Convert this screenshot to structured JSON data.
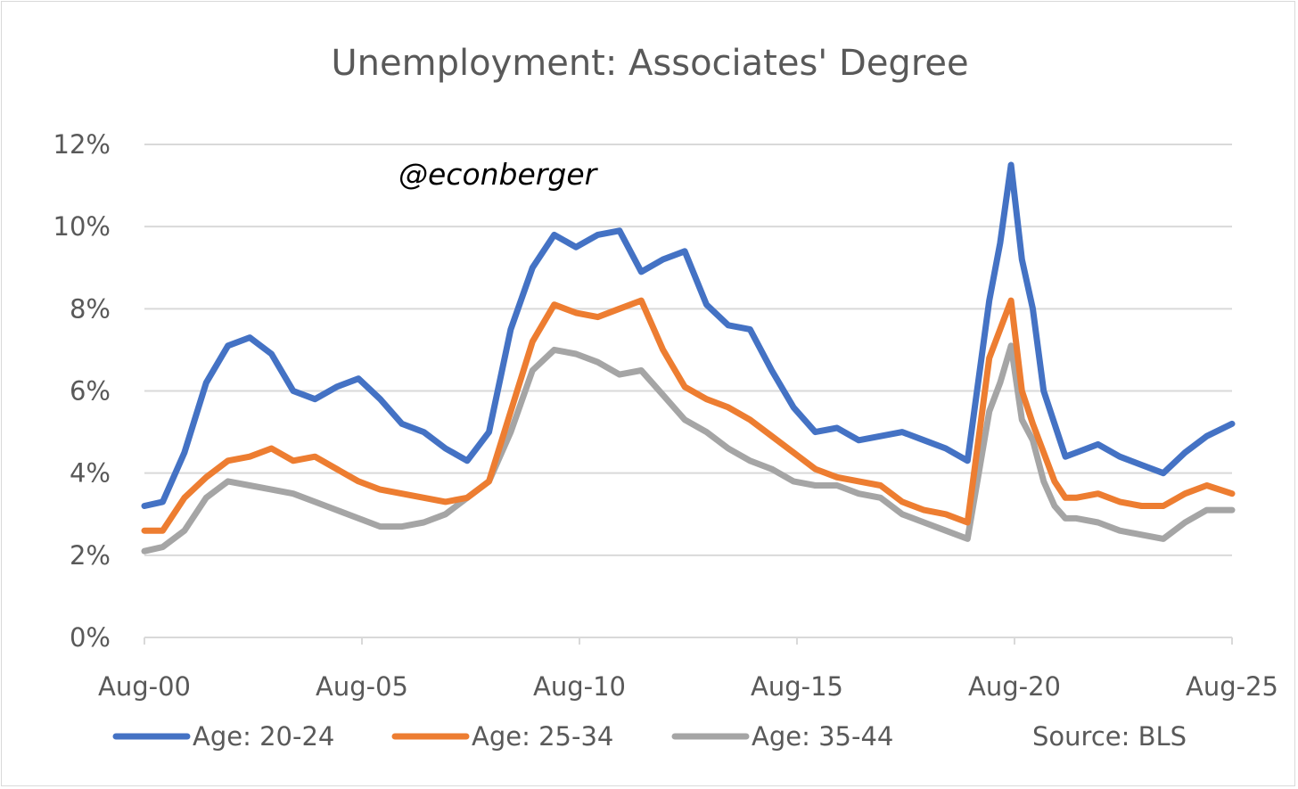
{
  "chart_data": {
    "type": "line",
    "title": "Unemployment: Associates' Degree",
    "watermark": "@econberger",
    "source_label": "Source: BLS",
    "x_tick_labels": [
      "Aug-00",
      "Aug-05",
      "Aug-10",
      "Aug-15",
      "Aug-20",
      "Aug-25"
    ],
    "y_tick_labels": [
      "0%",
      "2%",
      "4%",
      "6%",
      "8%",
      "10%",
      "12%"
    ],
    "ylim": [
      0,
      12
    ],
    "y_unit": "%",
    "grid": true,
    "legend_position": "bottom",
    "x": [
      2000.58,
      2001.0,
      2001.5,
      2002.0,
      2002.5,
      2003.0,
      2003.5,
      2004.0,
      2004.5,
      2005.0,
      2005.5,
      2006.0,
      2006.5,
      2007.0,
      2007.5,
      2008.0,
      2008.5,
      2009.0,
      2009.5,
      2010.0,
      2010.5,
      2011.0,
      2011.5,
      2012.0,
      2012.5,
      2013.0,
      2013.5,
      2014.0,
      2014.5,
      2015.0,
      2015.5,
      2016.0,
      2016.5,
      2017.0,
      2017.5,
      2018.0,
      2018.5,
      2019.0,
      2019.5,
      2020.0,
      2020.25,
      2020.5,
      2020.75,
      2021.0,
      2021.25,
      2021.5,
      2021.75,
      2022.0,
      2022.5,
      2023.0,
      2023.5,
      2024.0,
      2024.5,
      2025.0,
      2025.58
    ],
    "series": [
      {
        "name": "Age: 20-24",
        "color": "#4472c4",
        "values": [
          3.2,
          3.3,
          4.5,
          6.2,
          7.1,
          7.3,
          6.9,
          6.0,
          5.8,
          6.1,
          6.3,
          5.8,
          5.2,
          5.0,
          4.6,
          4.3,
          5.0,
          7.5,
          9.0,
          9.8,
          9.5,
          9.8,
          9.9,
          8.9,
          9.2,
          9.4,
          8.1,
          7.6,
          7.5,
          6.5,
          5.6,
          5.0,
          5.1,
          4.8,
          4.9,
          5.0,
          4.8,
          4.6,
          4.3,
          8.2,
          9.6,
          11.5,
          9.2,
          8.0,
          6.0,
          5.2,
          4.4,
          4.5,
          4.7,
          4.4,
          4.2,
          4.0,
          4.5,
          4.9,
          5.2
        ]
      },
      {
        "name": "Age: 25-34",
        "color": "#ed7d31",
        "values": [
          2.6,
          2.6,
          3.4,
          3.9,
          4.3,
          4.4,
          4.6,
          4.3,
          4.4,
          4.1,
          3.8,
          3.6,
          3.5,
          3.4,
          3.3,
          3.4,
          3.8,
          5.5,
          7.2,
          8.1,
          7.9,
          7.8,
          8.0,
          8.2,
          7.0,
          6.1,
          5.8,
          5.6,
          5.3,
          4.9,
          4.5,
          4.1,
          3.9,
          3.8,
          3.7,
          3.3,
          3.1,
          3.0,
          2.8,
          6.8,
          7.5,
          8.2,
          6.0,
          5.2,
          4.5,
          3.8,
          3.4,
          3.4,
          3.5,
          3.3,
          3.2,
          3.2,
          3.5,
          3.7,
          3.5
        ]
      },
      {
        "name": "Age: 35-44",
        "color": "#a5a5a5",
        "values": [
          2.1,
          2.2,
          2.6,
          3.4,
          3.8,
          3.7,
          3.6,
          3.5,
          3.3,
          3.1,
          2.9,
          2.7,
          2.7,
          2.8,
          3.0,
          3.4,
          3.8,
          5.0,
          6.5,
          7.0,
          6.9,
          6.7,
          6.4,
          6.5,
          5.9,
          5.3,
          5.0,
          4.6,
          4.3,
          4.1,
          3.8,
          3.7,
          3.7,
          3.5,
          3.4,
          3.0,
          2.8,
          2.6,
          2.4,
          5.5,
          6.2,
          7.1,
          5.3,
          4.8,
          3.8,
          3.2,
          2.9,
          2.9,
          2.8,
          2.6,
          2.5,
          2.4,
          2.8,
          3.1,
          3.1
        ]
      }
    ]
  }
}
